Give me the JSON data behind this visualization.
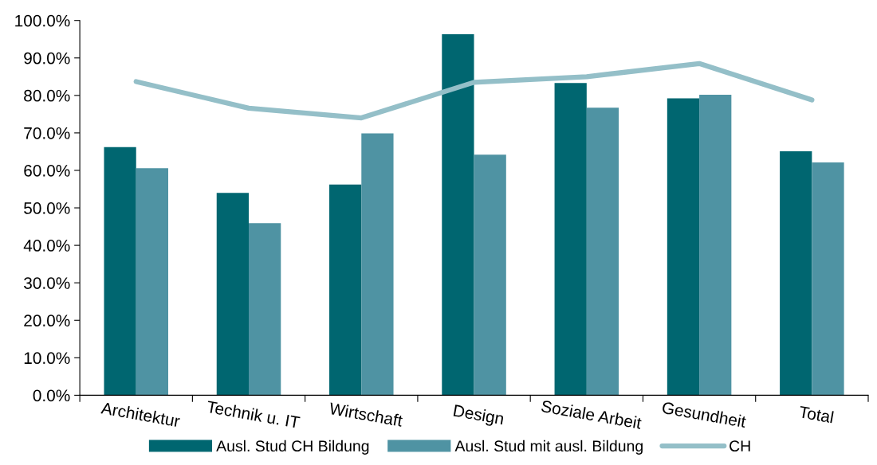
{
  "chart_data": {
    "type": "bar",
    "categories": [
      "Architektur",
      "Technik u. IT",
      "Wirtschaft",
      "Design",
      "Soziale Arbeit",
      "Gesundheit",
      "Total"
    ],
    "series": [
      {
        "name": "Ausl. Stud CH Bildung",
        "color": "#006670",
        "values": [
          66.2,
          54.0,
          56.2,
          96.3,
          83.3,
          79.2,
          65.1
        ]
      },
      {
        "name": "Ausl. Stud mit ausl. Bildung",
        "color": "#4f93a3",
        "values": [
          60.6,
          45.9,
          69.9,
          64.2,
          76.7,
          80.2,
          62.1
        ]
      },
      {
        "name": "CH",
        "type": "line",
        "color": "#94bfc8",
        "values": [
          83.7,
          76.6,
          74.0,
          83.5,
          85.0,
          88.5,
          78.8
        ]
      }
    ],
    "ylim": [
      0,
      100
    ],
    "yticks": [
      {
        "value": 0,
        "label": "0.0%"
      },
      {
        "value": 10,
        "label": "10.0%"
      },
      {
        "value": 20,
        "label": "20.0%"
      },
      {
        "value": 30,
        "label": "30.0%"
      },
      {
        "value": 40,
        "label": "40.0%"
      },
      {
        "value": 50,
        "label": "50.0%"
      },
      {
        "value": 60,
        "label": "60.0%"
      },
      {
        "value": 70,
        "label": "70.0%"
      },
      {
        "value": 80,
        "label": "80.0%"
      },
      {
        "value": 90,
        "label": "90.0%"
      },
      {
        "value": 100,
        "label": "100.0%"
      }
    ],
    "grid": false,
    "legend": "bottom",
    "marker": "none",
    "line_style": "solid"
  }
}
